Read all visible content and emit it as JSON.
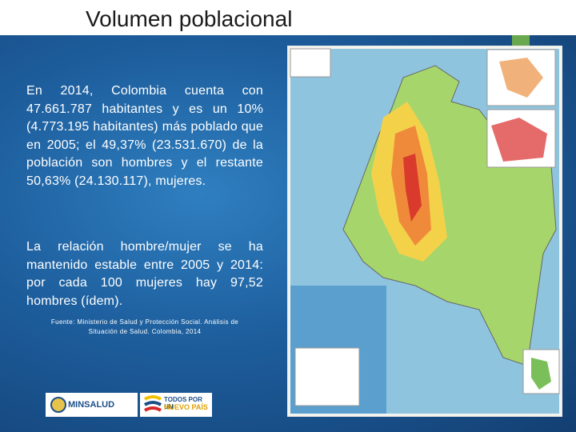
{
  "header": {
    "title": "Volumen poblacional"
  },
  "body": {
    "paragraphs": [
      "En 2014, Colombia cuenta con 47.661.787 habitantes y es un 10% (4.773.195 habitantes) más poblado que en 2005; el 49,37% (23.531.670) de la población son hombres y el restante 50,63% (24.130.117), mujeres.",
      "La relación hombre/mujer se ha mantenido estable entre 2005 y 2014: por cada 100 mujeres hay 97,52 hombres (ídem)."
    ],
    "source": "Fuente: Ministerio de Salud y Protección Social. Análisis de Situación de Salud. Colombia, 2014"
  },
  "logos": {
    "minsalud": "MINSALUD",
    "gobierno": [
      "TODOS POR UN",
      "NUEVO PAÍS"
    ]
  }
}
